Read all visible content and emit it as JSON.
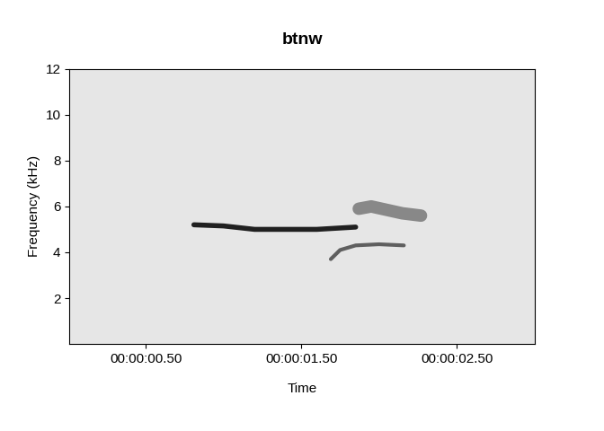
{
  "chart_data": {
    "type": "spectrogram",
    "title": "btnw",
    "x_label": "Time",
    "y_label": "Frequency (kHz)",
    "xlim": [
      0.01,
      3.0
    ],
    "xticks": [
      {
        "value": 0.5,
        "label": "00:00:00.50"
      },
      {
        "value": 1.5,
        "label": "00:00:01.50"
      },
      {
        "value": 2.5,
        "label": "00:00:02.50"
      }
    ],
    "ylim": [
      0,
      12
    ],
    "yticks": [
      2,
      4,
      6,
      8,
      10,
      12
    ],
    "series": [
      {
        "x": [
          0.81,
          1.0,
          1.2,
          1.4,
          1.6,
          1.85
        ],
        "values": [
          5.2,
          5.15,
          5.0,
          5.0,
          5.0,
          5.1
        ],
        "color": "#202020"
      },
      {
        "x": [
          1.69,
          1.75,
          1.85,
          2.0,
          2.16
        ],
        "values": [
          3.7,
          4.1,
          4.3,
          4.35,
          4.3
        ],
        "color": "#505050"
      },
      {
        "x": [
          1.87,
          1.95,
          2.05,
          2.15,
          2.27
        ],
        "values": [
          5.9,
          6.0,
          5.85,
          5.7,
          5.6
        ],
        "color": "#606060"
      }
    ]
  }
}
